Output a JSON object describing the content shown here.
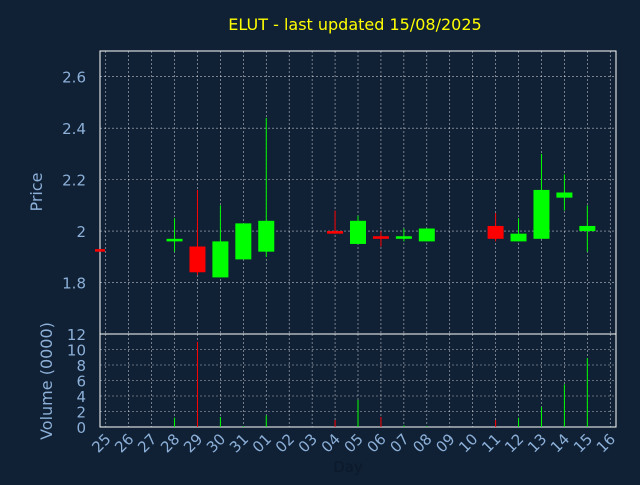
{
  "chart_data": {
    "type": "candlestick",
    "title": "ELUT - last updated 15/08/2025",
    "ylabel": "Price",
    "volume_ylabel": "Volume (0000)",
    "xlabel": "Day",
    "categories": [
      "25",
      "26",
      "27",
      "28",
      "29",
      "30",
      "31",
      "01",
      "02",
      "03",
      "04",
      "05",
      "06",
      "07",
      "08",
      "09",
      "10",
      "11",
      "12",
      "13",
      "14",
      "15",
      "16"
    ],
    "price_ylim": [
      1.6,
      2.7
    ],
    "price_ticks": [
      "1.8",
      "2",
      "2.2",
      "2.4",
      "2.6"
    ],
    "price_tick_values": [
      1.8,
      2.0,
      2.2,
      2.4,
      2.6
    ],
    "volume_ylim": [
      0,
      12
    ],
    "volume_ticks": [
      "0",
      "2",
      "4",
      "6",
      "8",
      "10",
      "12"
    ],
    "volume_tick_values": [
      0,
      2,
      4,
      6,
      8,
      10,
      12
    ],
    "grid": true,
    "candles": [
      {
        "x": -0.25,
        "open": 1.93,
        "close": 1.92,
        "high": 1.93,
        "low": 1.92,
        "volume": 0
      },
      {
        "x": 3,
        "open": 1.96,
        "close": 1.97,
        "high": 2.05,
        "low": 1.92,
        "volume": 1.2
      },
      {
        "x": 4,
        "open": 1.94,
        "close": 1.84,
        "high": 2.16,
        "low": 1.83,
        "volume": 11
      },
      {
        "x": 5,
        "open": 1.82,
        "close": 1.96,
        "high": 2.1,
        "low": 1.82,
        "volume": 1.3
      },
      {
        "x": 6,
        "open": 1.89,
        "close": 2.03,
        "high": 2.03,
        "low": 1.89,
        "volume": 0.1
      },
      {
        "x": 7,
        "open": 1.92,
        "close": 2.04,
        "high": 2.44,
        "low": 1.9,
        "volume": 1.5
      },
      {
        "x": 10,
        "open": 2.0,
        "close": 1.99,
        "high": 2.08,
        "low": 1.99,
        "volume": 0.9
      },
      {
        "x": 11,
        "open": 1.95,
        "close": 2.04,
        "high": 2.06,
        "low": 1.95,
        "volume": 3.5
      },
      {
        "x": 12,
        "open": 1.98,
        "close": 1.97,
        "high": 2.0,
        "low": 1.94,
        "volume": 1.3
      },
      {
        "x": 13,
        "open": 1.97,
        "close": 1.98,
        "high": 2.01,
        "low": 1.96,
        "volume": 0.2
      },
      {
        "x": 14,
        "open": 1.96,
        "close": 2.01,
        "high": 2.01,
        "low": 1.96,
        "volume": 0.1
      },
      {
        "x": 17,
        "open": 2.02,
        "close": 1.97,
        "high": 2.07,
        "low": 1.96,
        "volume": 0.9
      },
      {
        "x": 18,
        "open": 1.96,
        "close": 1.99,
        "high": 2.05,
        "low": 1.96,
        "volume": 1.2
      },
      {
        "x": 19,
        "open": 1.97,
        "close": 2.16,
        "high": 2.3,
        "low": 1.97,
        "volume": 2.6
      },
      {
        "x": 20,
        "open": 2.13,
        "close": 2.15,
        "high": 2.22,
        "low": 2.08,
        "volume": 5.5
      },
      {
        "x": 21,
        "open": 2.0,
        "close": 2.02,
        "high": 2.1,
        "low": 1.92,
        "volume": 8.9
      }
    ],
    "colors": {
      "background": "#102035",
      "up": "#00ff00",
      "down": "#ff0000",
      "title": "#ffff00",
      "text": "#8cb0d8",
      "grid": "#ffffff"
    }
  }
}
